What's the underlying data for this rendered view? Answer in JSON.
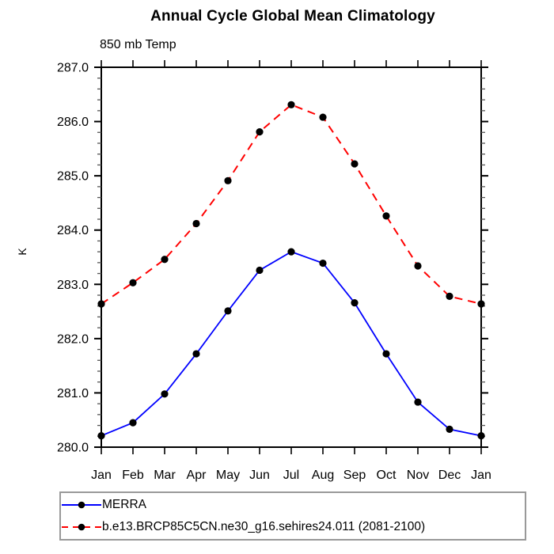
{
  "page": {
    "title": "Annual Cycle Global Mean Climatology",
    "subtitle": "850 mb Temp"
  },
  "chart_data": {
    "type": "line",
    "title": "Annual Cycle Global Mean Climatology",
    "subtitle": "850 mb Temp",
    "xlabel": "",
    "ylabel": "K",
    "categories": [
      "Jan",
      "Feb",
      "Mar",
      "Apr",
      "May",
      "Jun",
      "Jul",
      "Aug",
      "Sep",
      "Oct",
      "Nov",
      "Dec",
      "Jan"
    ],
    "ylim": [
      280.0,
      287.0
    ],
    "ytick_step": 1.0,
    "ytick_minor_step": 0.2,
    "ytick_labels": [
      "280.0",
      "281.0",
      "282.0",
      "283.0",
      "284.0",
      "285.0",
      "286.0",
      "287.0"
    ],
    "grid": false,
    "legend_position": "bottom-left",
    "marker": "circle",
    "marker_color": "#000000",
    "series": [
      {
        "name": "MERRA",
        "color": "#0000ff",
        "style": "solid",
        "values": [
          280.21,
          280.45,
          280.98,
          281.72,
          282.51,
          283.26,
          283.6,
          283.39,
          282.66,
          281.72,
          280.83,
          280.33,
          280.21
        ]
      },
      {
        "name": "b.e13.BRCP85C5CN.ne30_g16.sehires24.011 (2081-2100)",
        "color": "#ff0000",
        "style": "dashed",
        "values": [
          282.64,
          283.03,
          283.46,
          284.12,
          284.91,
          285.81,
          286.31,
          286.08,
          285.22,
          284.26,
          283.34,
          282.78,
          282.64
        ]
      }
    ]
  }
}
